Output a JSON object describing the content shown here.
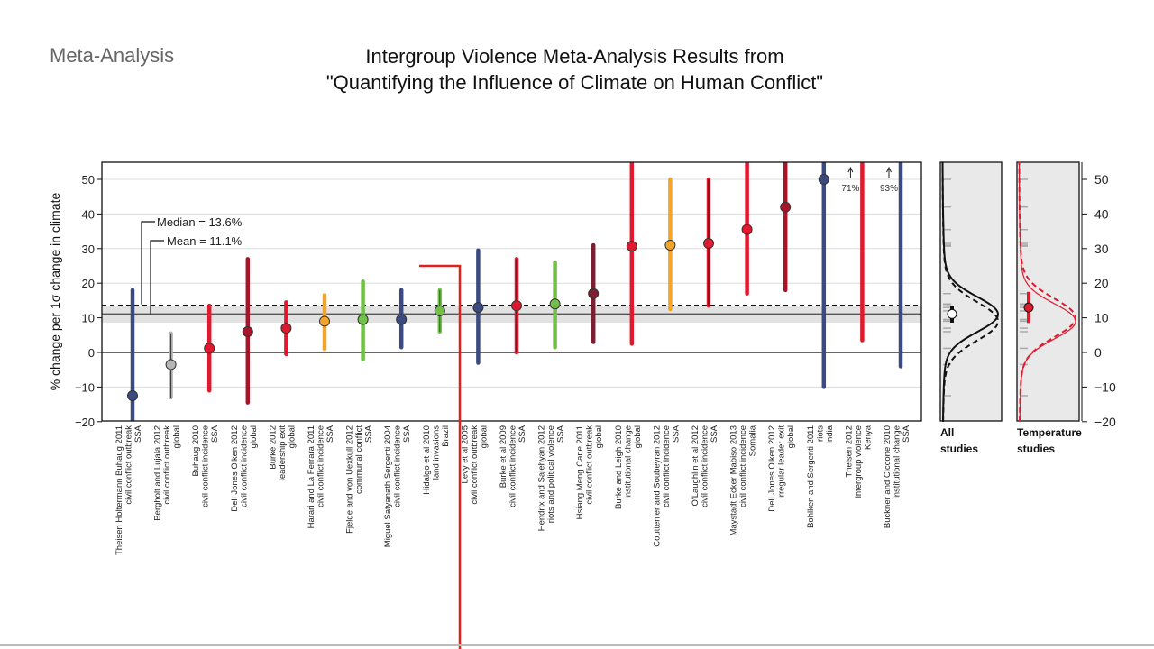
{
  "header": {
    "section": "Meta-Analysis",
    "title_line1": "Intergroup Violence Meta-Analysis Results from",
    "title_line2": "\"Quantifying the Influence of Climate on Human Conflict\""
  },
  "chart_data": {
    "type": "scatter",
    "subtype": "point-estimate with confidence interval",
    "ylabel": "% change per 1σ change in climate",
    "ylim": [
      -20,
      55
    ],
    "yticks": [
      -20,
      -10,
      0,
      10,
      20,
      30,
      40,
      50
    ],
    "grid": true,
    "median": {
      "value": 13.6,
      "label": "Median = 13.6%"
    },
    "mean": {
      "value": 11.1,
      "label": "Mean = 11.1%",
      "band": [
        8.6,
        13.3
      ]
    },
    "colors": {
      "navy": "#3b4a80",
      "gray": "#b5b5b5",
      "red": "#e0192e",
      "darkred": "#a8142a",
      "orange": "#f2a52a",
      "green": "#72c04a",
      "maroon": "#7a2030",
      "annotation": "#e0201a"
    },
    "studies": [
      {
        "lines": [
          "Theisen Holtermann Buhaug 2011",
          "civil conflict outbreak",
          "SSA"
        ],
        "est": -12.5,
        "lo": -25,
        "hi": 18,
        "color": "navy"
      },
      {
        "lines": [
          "Bergholt and Lujala 2012",
          "civil conflict outbreak",
          "global"
        ],
        "est": -3.5,
        "lo": -13,
        "hi": 5.5,
        "color": "gray",
        "outline": "#333"
      },
      {
        "lines": [
          "Buhaug 2010",
          "civil conflict incidence",
          "SSA"
        ],
        "est": 1.2,
        "lo": -11,
        "hi": 13.5,
        "color": "red"
      },
      {
        "lines": [
          "Dell Jones Olken 2012",
          "civil conflict incidence",
          "global"
        ],
        "est": 6,
        "lo": -14.5,
        "hi": 27,
        "color": "darkred"
      },
      {
        "lines": [
          "Burke 2012",
          "leadership exit",
          "global"
        ],
        "est": 7,
        "lo": -0.5,
        "hi": 14.5,
        "color": "red"
      },
      {
        "lines": [
          "Harari and La Ferrara 2011",
          "civil conflict incidence",
          "SSA"
        ],
        "est": 9,
        "lo": 1,
        "hi": 16.5,
        "color": "orange"
      },
      {
        "lines": [
          "Fjelde and von Uexkull 2012",
          "communal conflict",
          "SSA"
        ],
        "est": 9.5,
        "lo": -2,
        "hi": 20.5,
        "color": "green"
      },
      {
        "lines": [
          "Miguel Satyanath Sergenti 2004",
          "civil conflict incidence",
          "SSA"
        ],
        "est": 9.5,
        "lo": 1.5,
        "hi": 18,
        "color": "navy"
      },
      {
        "lines": [
          "Hidalgo et al 2010",
          "land invasions",
          "Brazil"
        ],
        "est": 12,
        "lo": 6,
        "hi": 18,
        "color": "green",
        "outline": "#2a5a20"
      },
      {
        "lines": [
          "Levy et al 2005",
          "civil conflict outbreak",
          "global"
        ],
        "est": 13,
        "lo": -3,
        "hi": 29.5,
        "color": "navy"
      },
      {
        "lines": [
          "Burke et al 2009",
          "civil conflict incidence",
          "SSA"
        ],
        "est": 13.5,
        "lo": 0,
        "hi": 27,
        "color": "red",
        "outline": "#3a1010"
      },
      {
        "lines": [
          "Hendrix and Salehyan 2012",
          "riots and political violence",
          "SSA"
        ],
        "est": 14,
        "lo": 1.5,
        "hi": 26,
        "color": "green"
      },
      {
        "lines": [
          "Hsiang Meng Cane 2011",
          "civil conflict outbreak",
          "global"
        ],
        "est": 17,
        "lo": 3,
        "hi": 31,
        "color": "maroon"
      },
      {
        "lines": [
          "Burke and Leigh 2010",
          "institutional change",
          "global"
        ],
        "est": 30.7,
        "lo": 2.5,
        "hi": 60,
        "color": "red"
      },
      {
        "lines": [
          "Couttenier and Soubeyran 2012",
          "civil conflict incidence",
          "SSA"
        ],
        "est": 31,
        "lo": 12.5,
        "hi": 50,
        "color": "orange"
      },
      {
        "lines": [
          "O'Laughlin et al 2012",
          "civil conflict incidence",
          "SSA"
        ],
        "est": 31.5,
        "lo": 13.5,
        "hi": 50,
        "color": "red",
        "outline": "#3a1010"
      },
      {
        "lines": [
          "Maystadt Ecker Mabiso 2013",
          "civil conflict incidence",
          "Somalia"
        ],
        "est": 35.5,
        "lo": 17,
        "hi": 60,
        "color": "red"
      },
      {
        "lines": [
          "Dell Jones Olken 2012",
          "irregular leader exit",
          "global"
        ],
        "est": 42,
        "lo": 18,
        "hi": 60,
        "color": "darkred"
      },
      {
        "lines": [
          "Bohlken and Sergenti 2011",
          "riots",
          "India"
        ],
        "est": 50,
        "lo": -10,
        "hi": 60,
        "color": "navy"
      },
      {
        "lines": [
          "Theisen 2012",
          "intergroup violence",
          "Kenya"
        ],
        "est": 71,
        "lo": 3.5,
        "hi": 60,
        "color": "red",
        "offchart_label": "71%"
      },
      {
        "lines": [
          "Buckner and Ciccone 2010",
          "institutional change",
          "SSA"
        ],
        "est": 93,
        "lo": -4,
        "hi": 60,
        "color": "navy",
        "offchart_label": "93%"
      }
    ],
    "side_panels": [
      {
        "label_line1": "All",
        "label_line2": "studies",
        "color": "#111",
        "solid_mode": 11,
        "dashed_mode": 9,
        "marker": {
          "est": 11.1,
          "lo": 8.6,
          "hi": 13.3,
          "fill": "#ffffff"
        }
      },
      {
        "label_line1": "Temperature",
        "label_line2": "studies",
        "color": "#e0192e",
        "solid_mode": 9,
        "dashed_mode": 10,
        "marker": {
          "est": 13,
          "lo": 8.5,
          "hi": 17.5,
          "fill": "#e0192e"
        }
      }
    ]
  }
}
